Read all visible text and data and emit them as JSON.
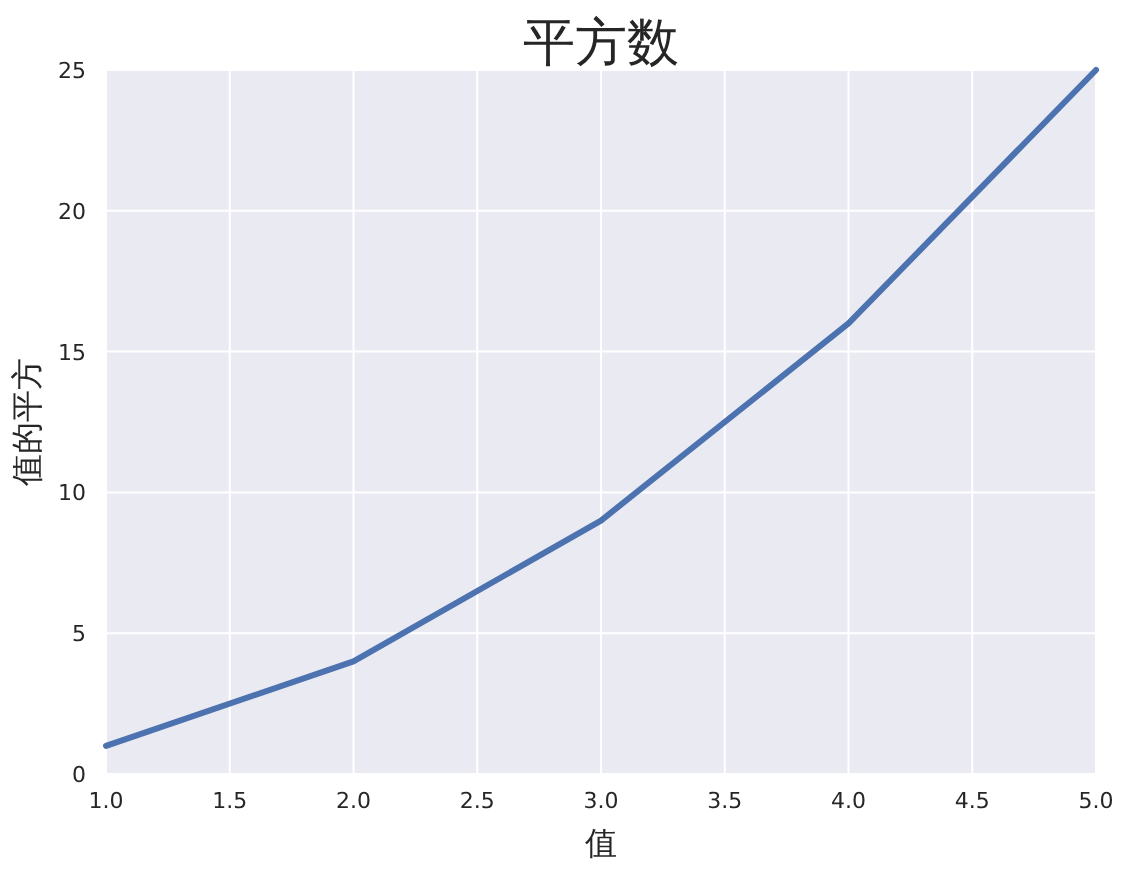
{
  "chart_data": {
    "type": "line",
    "title": "平方数",
    "xlabel": "值",
    "ylabel": "值的平方",
    "x": [
      1,
      2,
      3,
      4,
      5
    ],
    "series": [
      {
        "color": "#4c72b0",
        "values": [
          1,
          4,
          9,
          16,
          25
        ]
      }
    ],
    "xlim": [
      1,
      5
    ],
    "ylim": [
      0,
      25
    ],
    "xticks": [
      {
        "value": 1,
        "label": "1.0"
      },
      {
        "value": 1.5,
        "label": "1.5"
      },
      {
        "value": 2,
        "label": "2.0"
      },
      {
        "value": 2.5,
        "label": "2.5"
      },
      {
        "value": 3,
        "label": "3.0"
      },
      {
        "value": 3.5,
        "label": "3.5"
      },
      {
        "value": 4,
        "label": "4.0"
      },
      {
        "value": 4.5,
        "label": "4.5"
      },
      {
        "value": 5,
        "label": "5.0"
      }
    ],
    "yticks": [
      0,
      5,
      10,
      15,
      20,
      25
    ],
    "grid": true,
    "line_style": "solid"
  }
}
